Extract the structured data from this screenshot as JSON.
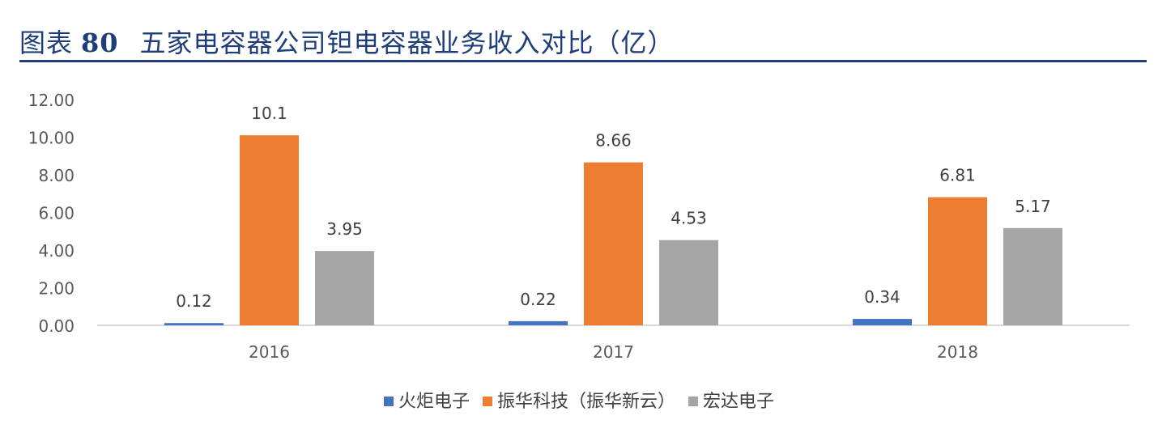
{
  "header": {
    "label": "图表",
    "number": "80",
    "title": "五家电容器公司钽电容器业务收入对比（亿）"
  },
  "chart_data": {
    "type": "bar",
    "categories": [
      "2016",
      "2017",
      "2018"
    ],
    "series": [
      {
        "name": "火炬电子",
        "values": [
          0.12,
          0.22,
          0.34
        ],
        "labels": [
          "0.12",
          "0.22",
          "0.34"
        ],
        "color": "#4472C4"
      },
      {
        "name": "振华科技（振华新云）",
        "values": [
          10.1,
          8.66,
          6.81
        ],
        "labels": [
          "10.1",
          "8.66",
          "6.81"
        ],
        "color": "#ED7D31"
      },
      {
        "name": "宏达电子",
        "values": [
          3.95,
          4.53,
          5.17
        ],
        "labels": [
          "3.95",
          "4.53",
          "5.17"
        ],
        "color": "#A5A5A5"
      }
    ],
    "ylim": [
      0,
      12
    ],
    "yticks": [
      "0.00",
      "2.00",
      "4.00",
      "6.00",
      "8.00",
      "10.00",
      "12.00"
    ],
    "grid": false,
    "legend_position": "bottom"
  }
}
